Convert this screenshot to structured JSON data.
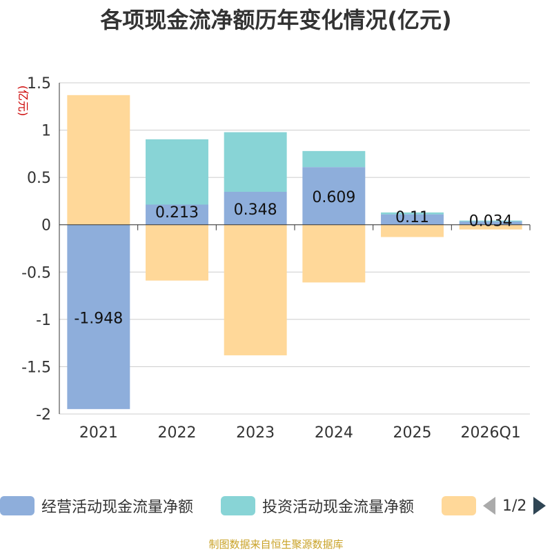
{
  "chart_data": {
    "type": "bar",
    "stacked": true,
    "title": "各项现金流净额历年变化情况(亿元)",
    "ylabel": "(亿元)",
    "xlabel": "",
    "ylim": [
      -2,
      1.5
    ],
    "yticks": [
      1.5,
      1,
      0.5,
      0,
      -0.5,
      -1,
      -1.5,
      -2
    ],
    "ytick_labels": [
      "1.5",
      "1",
      "0.5",
      "0",
      "-0.5",
      "-1",
      "-1.5",
      "-2"
    ],
    "categories": [
      "2021",
      "2022",
      "2023",
      "2024",
      "2025",
      "2026Q1"
    ],
    "series": [
      {
        "name": "经营活动现金流量净额",
        "color": "#8eaedb",
        "values": [
          -1.948,
          0.213,
          0.348,
          0.609,
          0.11,
          0.034
        ],
        "labels": [
          "-1.948",
          "0.213",
          "0.348",
          "0.609",
          "0.11",
          "0.034"
        ]
      },
      {
        "name": "投资活动现金流量净额",
        "color": "#88d4d6",
        "values": [
          0,
          0.69,
          0.63,
          0.17,
          0.02,
          0.01
        ]
      },
      {
        "name": "",
        "color": "#ffd899",
        "values": [
          1.37,
          -0.59,
          -1.38,
          -0.61,
          -0.13,
          -0.05
        ]
      }
    ],
    "grid": true,
    "legend_position": "bottom"
  },
  "legend": {
    "page_indicator": "1/2"
  },
  "source_text": "制图数据来自恒生聚源数据库"
}
